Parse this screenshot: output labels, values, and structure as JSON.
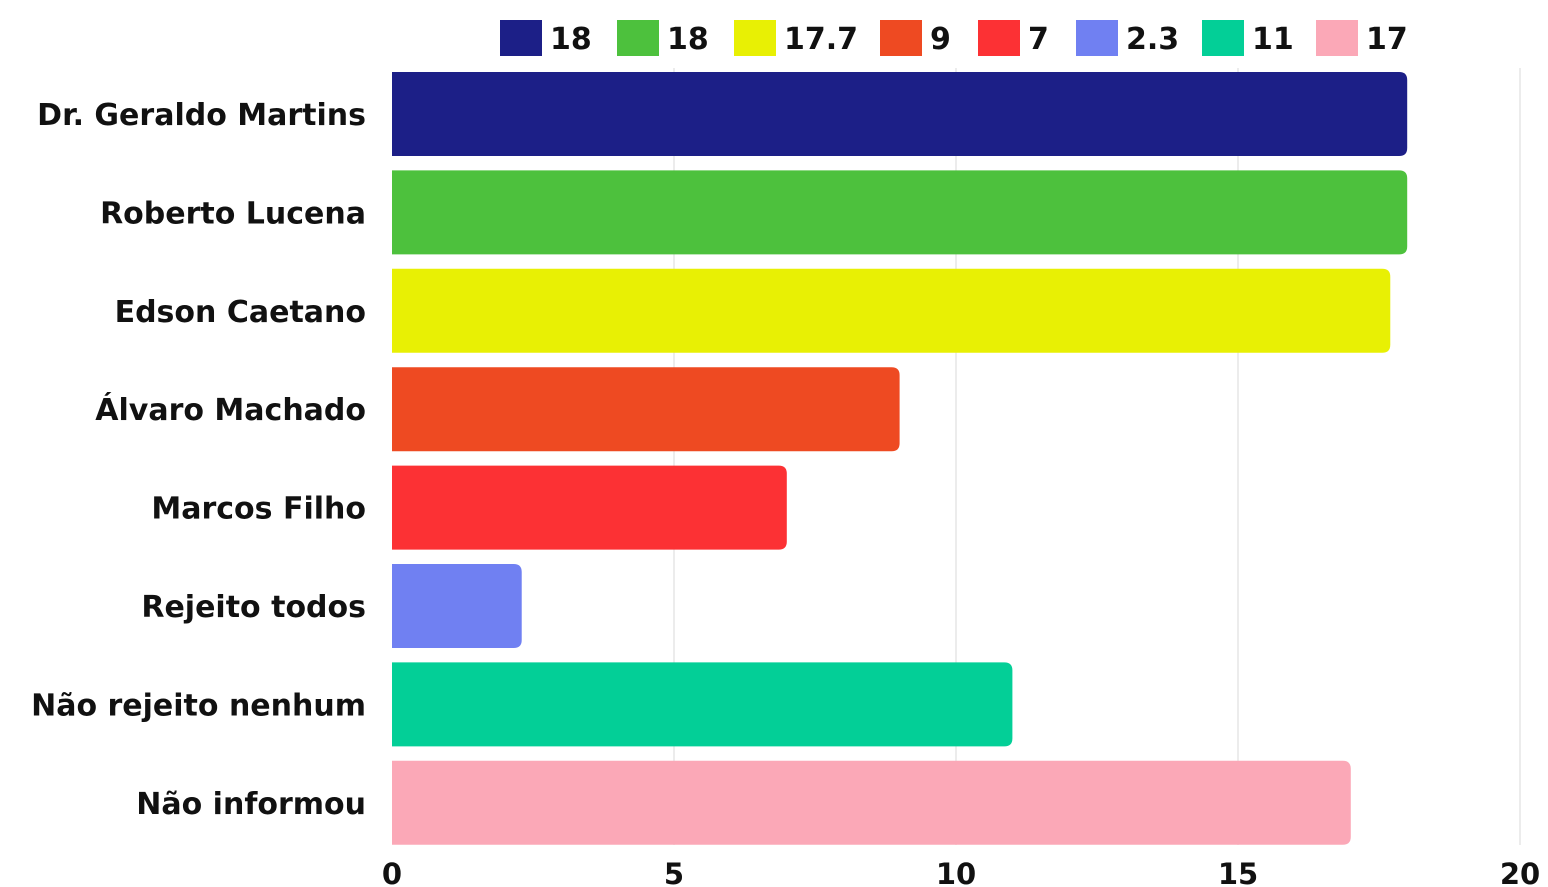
{
  "chart_data": {
    "type": "bar",
    "orientation": "horizontal",
    "categories": [
      "Dr. Geraldo Martins",
      "Roberto Lucena",
      "Edson Caetano",
      "Álvaro Machado",
      "Marcos Filho",
      "Rejeito todos",
      "Não rejeito nenhum",
      "Não informou"
    ],
    "values": [
      18,
      18,
      17.7,
      9,
      7,
      2.3,
      11,
      17
    ],
    "colors": [
      "#1c1f87",
      "#4dc13d",
      "#e8f004",
      "#ee4a22",
      "#fc3134",
      "#7080f2",
      "#03cf97",
      "#fba8b7"
    ],
    "legend": {
      "position": "top-right",
      "entries": [
        "18",
        "18",
        "17.7",
        "9",
        "7",
        "2.3",
        "11",
        "17"
      ]
    },
    "xlim": [
      0,
      20
    ],
    "xticks": [
      "0",
      "5",
      "10",
      "15",
      "20"
    ],
    "grid": "vertical",
    "title": "",
    "xlabel": "",
    "ylabel": ""
  }
}
